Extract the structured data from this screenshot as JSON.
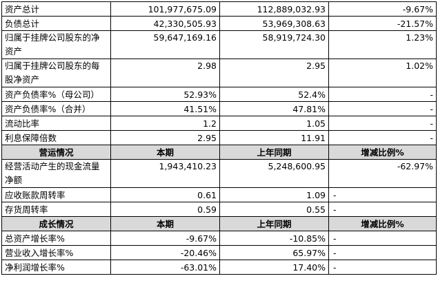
{
  "rows_top": [
    {
      "label": "资产总计",
      "current": "101,977,675.09",
      "prior": "112,889,032.93",
      "change": "-9.67%"
    },
    {
      "label": "负债总计",
      "current": "42,330,505.93",
      "prior": "53,969,308.63",
      "change": "-21.57%"
    },
    {
      "label": "归属于挂牌公司股东的净资产",
      "current": "59,647,169.16",
      "prior": "58,919,724.30",
      "change": "1.23%"
    },
    {
      "label": "归属于挂牌公司股东的每股净资产",
      "current": "2.98",
      "prior": "2.95",
      "change": "1.02%"
    },
    {
      "label": "资产负债率%（母公司）",
      "current": "52.93%",
      "prior": "52.4%",
      "change": "-"
    },
    {
      "label": "资产负债率%（合并）",
      "current": "41.51%",
      "prior": "47.81%",
      "change": "-"
    },
    {
      "label": "流动比率",
      "current": "1.2",
      "prior": "1.05",
      "change": "-"
    },
    {
      "label": "利息保障倍数",
      "current": "2.95",
      "prior": "11.91",
      "change": "-"
    }
  ],
  "section_operating": {
    "header": {
      "title": "营运情况",
      "current": "本期",
      "prior": "上年同期",
      "change": "增减比例%"
    },
    "rows": [
      {
        "label": "经营活动产生的现金流量净额",
        "current": "1,943,410.23",
        "prior": "5,248,600.95",
        "change": "-62.97%"
      },
      {
        "label": "应收账款周转率",
        "current": "0.61",
        "prior": "1.09",
        "change": "-"
      },
      {
        "label": "存货周转率",
        "current": "0.59",
        "prior": "0.55",
        "change": "-"
      }
    ]
  },
  "section_growth": {
    "header": {
      "title": "成长情况",
      "current": "本期",
      "prior": "上年同期",
      "change": "增减比例%"
    },
    "rows": [
      {
        "label": "总资产增长率%",
        "current": "-9.67%",
        "prior": "-10.85%",
        "change": "-"
      },
      {
        "label": "营业收入增长率%",
        "current": "-20.46%",
        "prior": "65.97%",
        "change": "-"
      },
      {
        "label": "净利润增长率%",
        "current": "-63.01%",
        "prior": "17.40%",
        "change": "-"
      }
    ]
  },
  "colors": {
    "header_bg": "#d9d9d9",
    "border": "#000000",
    "text": "#000000"
  }
}
